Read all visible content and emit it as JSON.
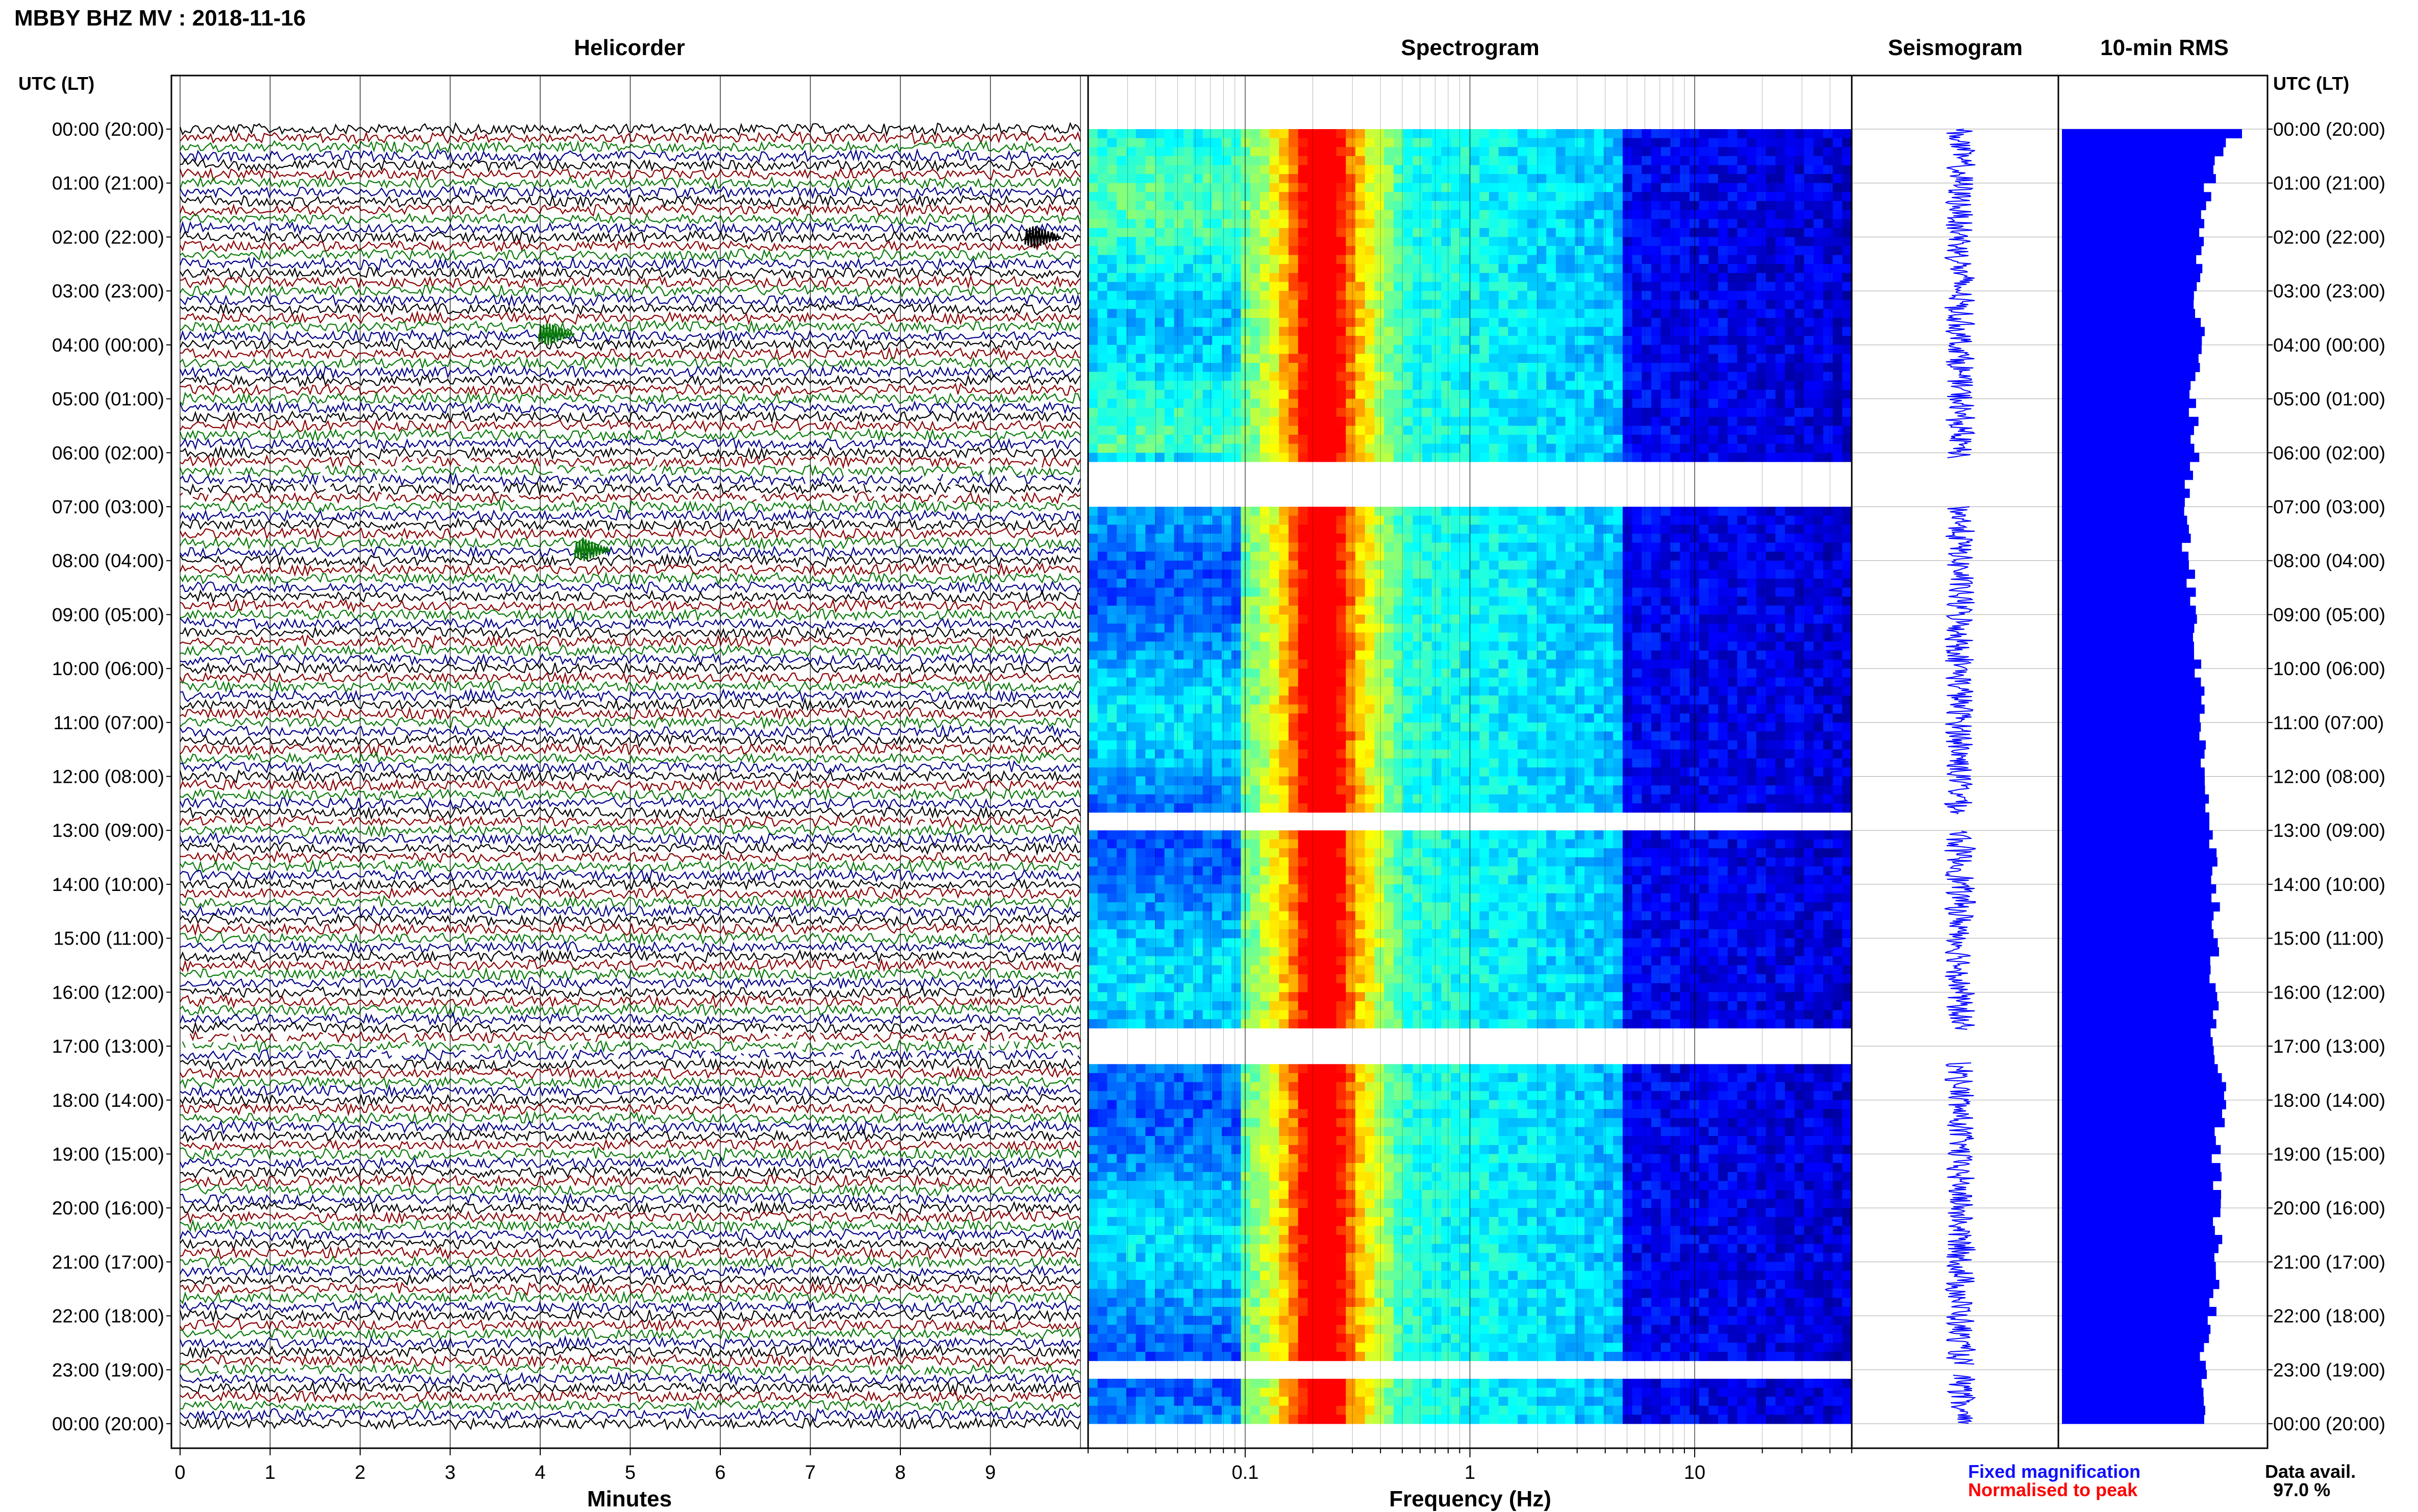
{
  "header": {
    "station_title": "MBBY BHZ MV : 2018-11-16",
    "utc_lt_label_left": "UTC (LT)",
    "utc_lt_label_right": "UTC (LT)"
  },
  "footer": {
    "legend_fixed": "Fixed magnification",
    "legend_normalised": "Normalised to peak",
    "data_avail_label": "Data avail.",
    "data_avail_value": "97.0 %"
  },
  "colors": {
    "trace_cycle": [
      "#000000",
      "#8b0000",
      "#0a7a0a",
      "#00008b"
    ],
    "fixed_legend": "#1010ff",
    "normalised_legend": "#ff0000",
    "rms_fill": "#0000ff",
    "seismogram": "#0000ff",
    "spectrogram_colormap": [
      "#00007f",
      "#0000ff",
      "#0080ff",
      "#00ffff",
      "#80ff80",
      "#ffff00",
      "#ff8000",
      "#ff0000"
    ]
  },
  "chart_data": [
    {
      "type": "line",
      "title": "Helicorder",
      "xlabel": "Minutes",
      "xlim": [
        0,
        10
      ],
      "x_ticks": [
        0,
        1,
        2,
        3,
        4,
        5,
        6,
        7,
        8,
        9
      ],
      "rows_per_day": 144,
      "minutes_per_row": 10,
      "time_labels_utc_lt": [
        "00:00 (20:00)",
        "01:00 (21:00)",
        "02:00 (22:00)",
        "03:00 (23:00)",
        "04:00 (00:00)",
        "05:00 (01:00)",
        "06:00 (02:00)",
        "07:00 (03:00)",
        "08:00 (04:00)",
        "09:00 (05:00)",
        "10:00 (06:00)",
        "11:00 (07:00)",
        "12:00 (08:00)",
        "13:00 (09:00)",
        "14:00 (10:00)",
        "15:00 (11:00)",
        "16:00 (12:00)",
        "17:00 (13:00)",
        "18:00 (14:00)",
        "19:00 (15:00)",
        "20:00 (16:00)",
        "21:00 (17:00)",
        "22:00 (18:00)",
        "23:00 (19:00)",
        "00:00 (20:00)"
      ],
      "notable_events": [
        {
          "hour": 2,
          "minute": 9.5,
          "color_index": 0
        },
        {
          "hour": 3.8,
          "minute": 4.1,
          "color_index": 2
        },
        {
          "hour": 7.8,
          "minute": 4.5,
          "color_index": 2
        }
      ]
    },
    {
      "type": "heatmap",
      "title": "Spectrogram",
      "xlabel": "Frequency (Hz)",
      "x_scale": "log",
      "xlim": [
        0.02,
        50
      ],
      "x_tick_labels": [
        "0.1",
        "1",
        "10"
      ],
      "x_ticks": [
        0.1,
        1,
        10
      ],
      "ylim_hours": [
        0,
        24
      ],
      "gaps_hours": [
        [
          6.1,
          7.0
        ],
        [
          12.7,
          13.0
        ],
        [
          16.7,
          17.3
        ],
        [
          22.9,
          23.1
        ]
      ]
    },
    {
      "type": "line",
      "title": "Seismogram",
      "ylim_hours": [
        0,
        24
      ],
      "gaps_hours": [
        [
          6.1,
          7.0
        ],
        [
          12.7,
          13.0
        ],
        [
          16.7,
          17.3
        ],
        [
          22.9,
          23.1
        ]
      ]
    },
    {
      "type": "bar",
      "title": "10-min RMS",
      "ylim_hours": [
        0,
        24
      ],
      "bins": 144,
      "relative_values_hourly": [
        0.92,
        0.82,
        0.78,
        0.74,
        0.78,
        0.72,
        0.74,
        0.68,
        0.7,
        0.74,
        0.76,
        0.78,
        0.8,
        0.82,
        0.86,
        0.86,
        0.84,
        0.86,
        0.9,
        0.86,
        0.86,
        0.86,
        0.84,
        0.78,
        0.8
      ]
    }
  ]
}
